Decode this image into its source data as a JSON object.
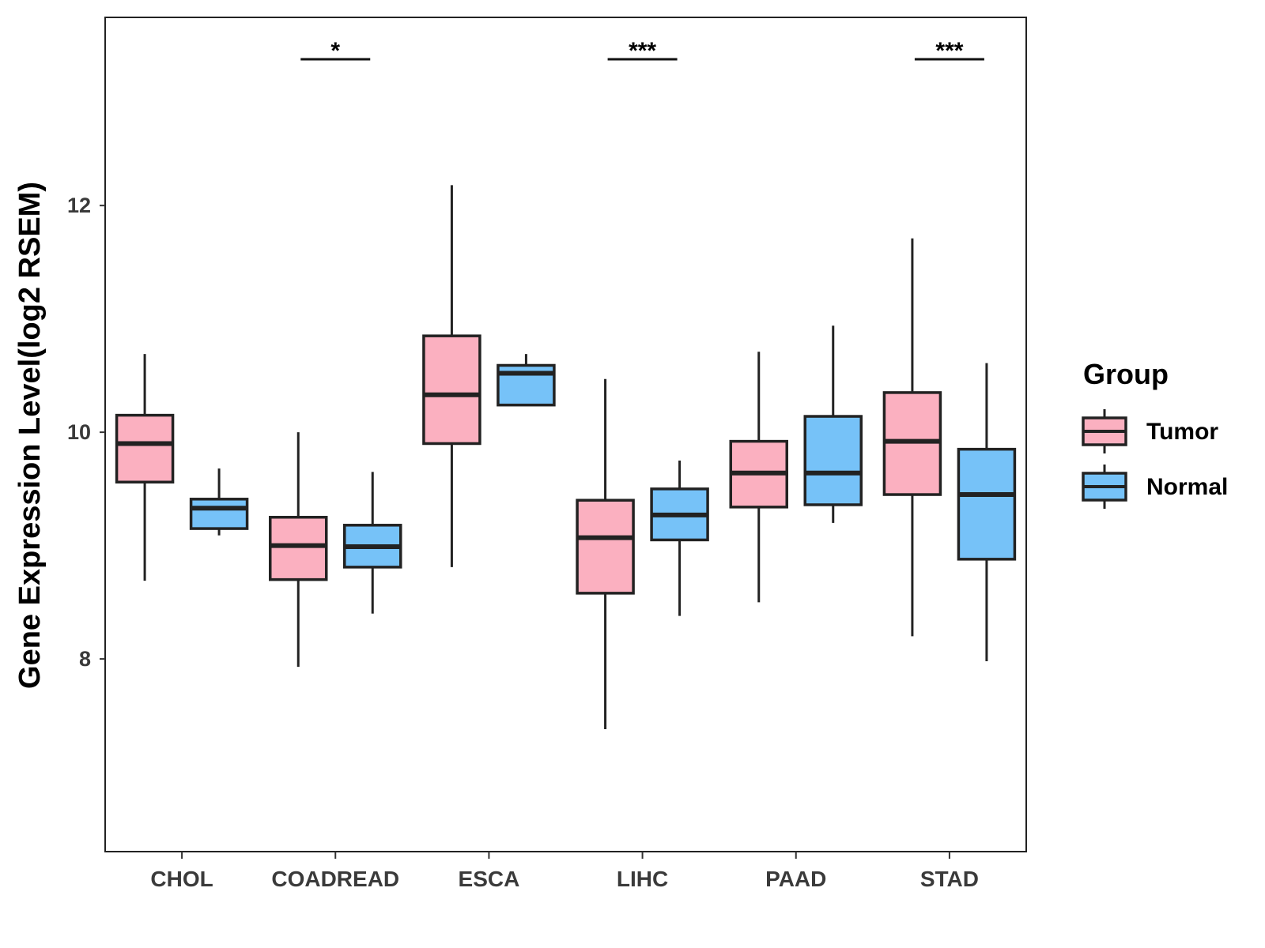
{
  "chart_data": {
    "type": "boxplot",
    "title": "",
    "xlabel": "",
    "ylabel": "Gene Expression Level(log2 RSEM)",
    "ylim": [
      6.3,
      13.66
    ],
    "yticks": [
      8,
      10,
      12
    ],
    "grid": false,
    "legend_placement": "right",
    "categories": [
      "CHOL",
      "COADREAD",
      "ESCA",
      "LIHC",
      "PAAD",
      "STAD"
    ],
    "legend": {
      "title": "Group",
      "entries": [
        {
          "name": "Tumor",
          "color": "#fbb0c0"
        },
        {
          "name": "Normal",
          "color": "#76c2f8"
        }
      ]
    },
    "series": [
      {
        "name": "Tumor",
        "color": "#fbb0c0",
        "boxes": [
          {
            "min": 8.69,
            "q1": 9.56,
            "median": 9.9,
            "q3": 10.15,
            "max": 10.69
          },
          {
            "min": 7.93,
            "q1": 8.7,
            "median": 9.0,
            "q3": 9.25,
            "max": 10.0
          },
          {
            "min": 8.81,
            "q1": 9.9,
            "median": 10.33,
            "q3": 10.85,
            "max": 12.18
          },
          {
            "min": 7.38,
            "q1": 8.58,
            "median": 9.07,
            "q3": 9.4,
            "max": 10.47
          },
          {
            "min": 8.5,
            "q1": 9.34,
            "median": 9.64,
            "q3": 9.92,
            "max": 10.71
          },
          {
            "min": 8.2,
            "q1": 9.45,
            "median": 9.92,
            "q3": 10.35,
            "max": 11.71
          }
        ]
      },
      {
        "name": "Normal",
        "color": "#76c2f8",
        "boxes": [
          {
            "min": 9.09,
            "q1": 9.15,
            "median": 9.33,
            "q3": 9.41,
            "max": 9.68
          },
          {
            "min": 8.4,
            "q1": 8.81,
            "median": 8.99,
            "q3": 9.18,
            "max": 9.65
          },
          {
            "min": 10.24,
            "q1": 10.24,
            "median": 10.52,
            "q3": 10.59,
            "max": 10.69
          },
          {
            "min": 8.38,
            "q1": 9.05,
            "median": 9.27,
            "q3": 9.5,
            "max": 9.75
          },
          {
            "min": 9.2,
            "q1": 9.36,
            "median": 9.64,
            "q3": 10.14,
            "max": 10.94
          },
          {
            "min": 7.98,
            "q1": 8.88,
            "median": 9.45,
            "q3": 9.85,
            "max": 10.61
          }
        ]
      }
    ],
    "significance": [
      {
        "category": "CHOL",
        "label": ""
      },
      {
        "category": "COADREAD",
        "label": "*"
      },
      {
        "category": "ESCA",
        "label": ""
      },
      {
        "category": "LIHC",
        "label": "***"
      },
      {
        "category": "PAAD",
        "label": ""
      },
      {
        "category": "STAD",
        "label": "***"
      }
    ]
  }
}
